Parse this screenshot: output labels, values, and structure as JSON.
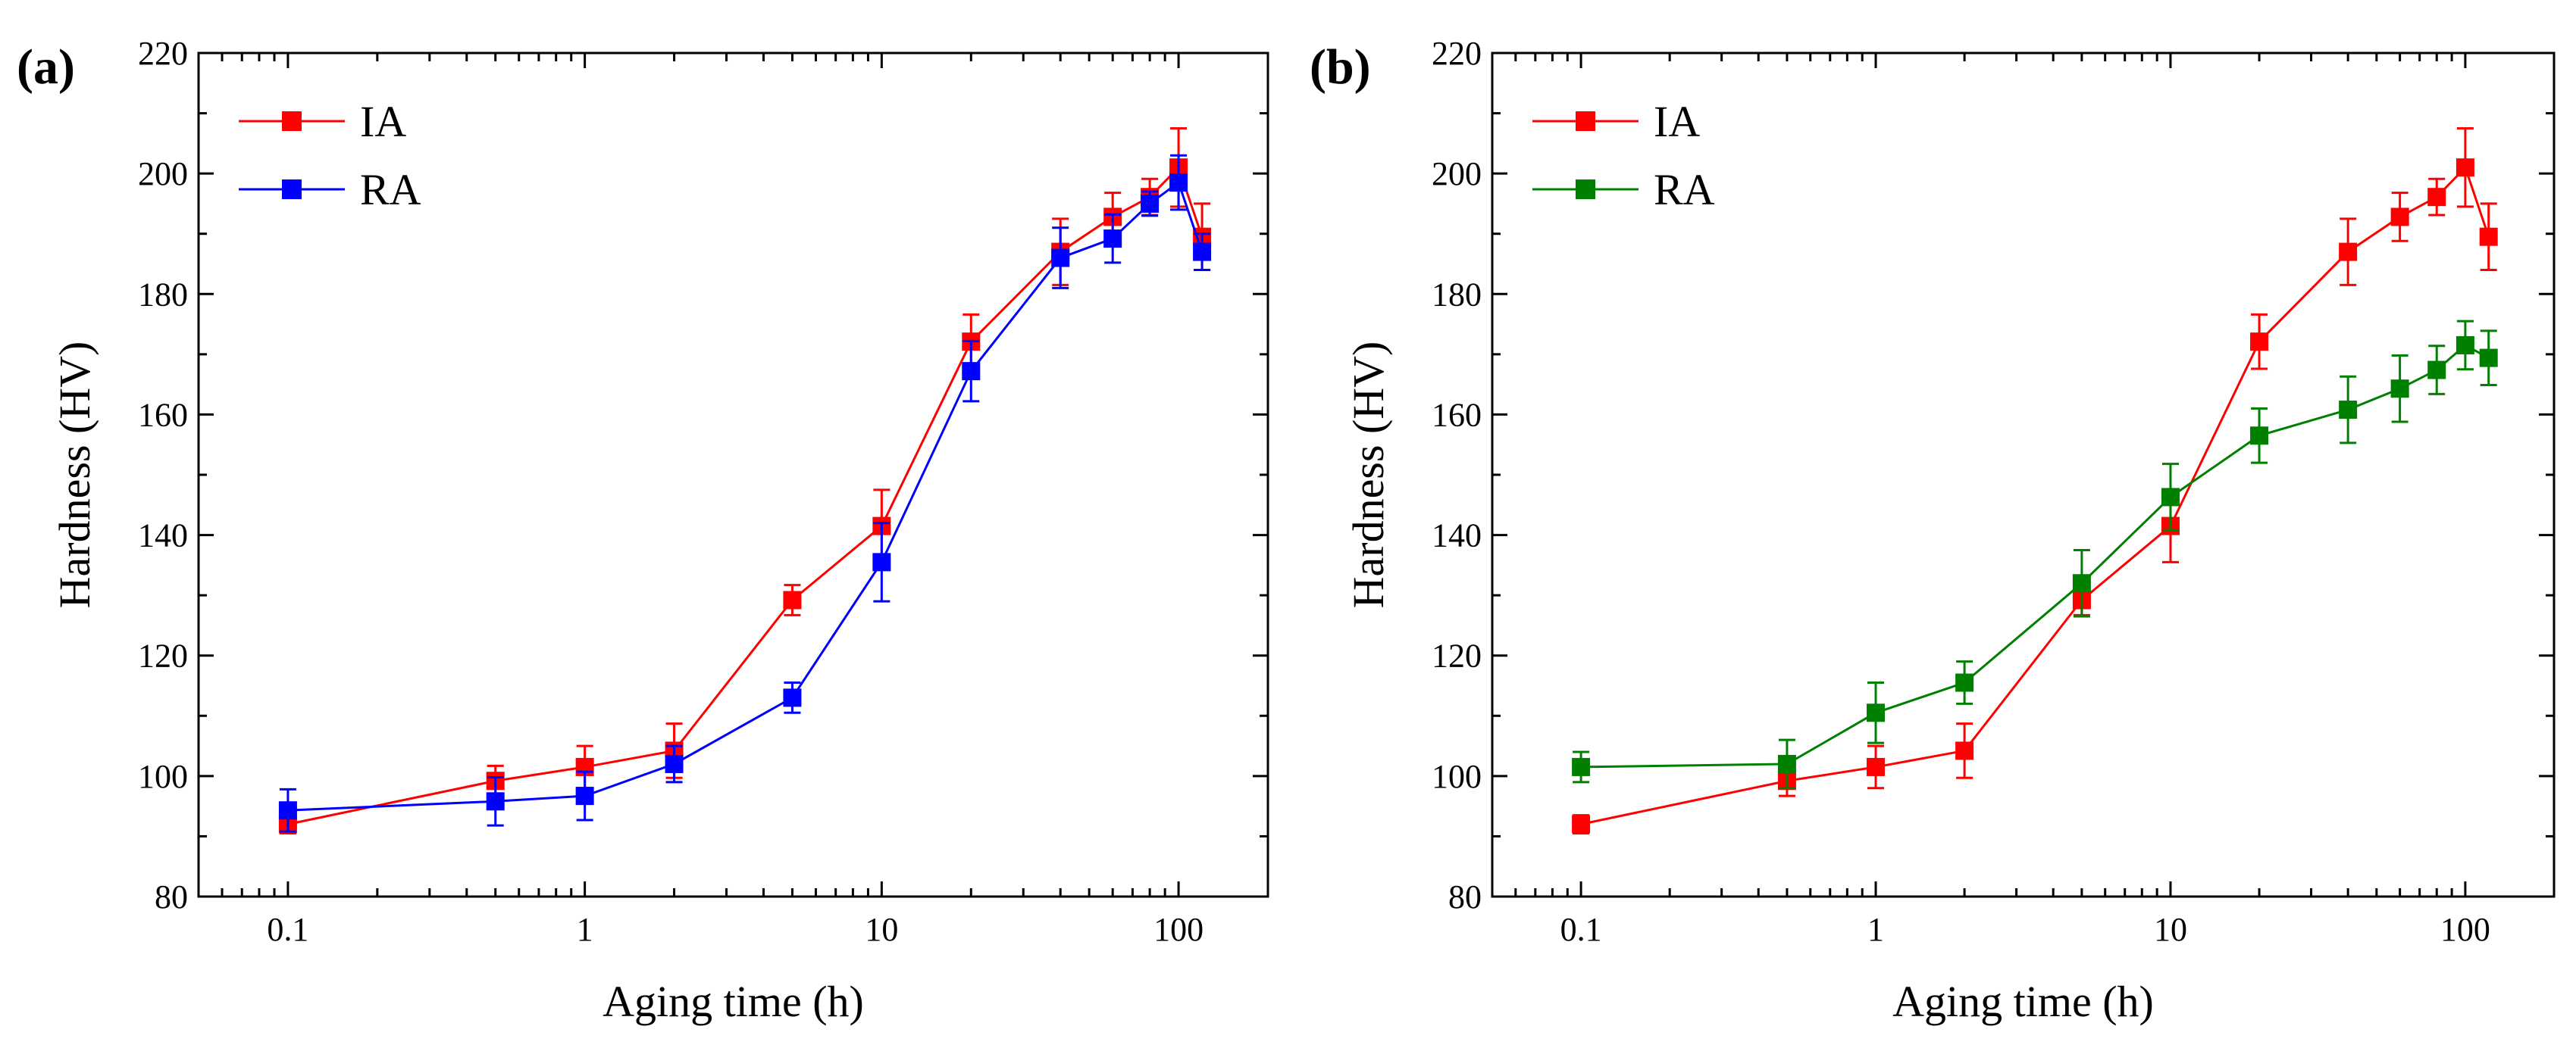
{
  "figure": {
    "panels": [
      {
        "label": "(a)"
      },
      {
        "label": "(b)"
      }
    ]
  },
  "chart_data": [
    {
      "type": "line",
      "panel_label": "(a)",
      "xlabel": "Aging time (h)",
      "ylabel": "Hardness (HV)",
      "xscale": "log",
      "xlim": [
        0.05,
        200
      ],
      "ylim": [
        80,
        220
      ],
      "xticks": [
        0.1,
        1,
        10,
        100
      ],
      "xtick_labels": [
        "0.1",
        "1",
        "10",
        "100"
      ],
      "yticks": [
        80,
        100,
        120,
        140,
        160,
        180,
        200,
        220
      ],
      "grid": false,
      "legend": "top-left",
      "x": [
        0.1,
        0.5,
        1,
        2,
        5,
        10,
        20,
        40,
        60,
        80,
        100,
        120
      ],
      "series": [
        {
          "name": "IA",
          "color": "#ff0000",
          "values": [
            92,
            99.2,
            101.5,
            104.2,
            129.2,
            141.5,
            172.1,
            187,
            192.8,
            196.1,
            201,
            189.5
          ],
          "errors": [
            1.5,
            2.5,
            3.5,
            4.5,
            2.5,
            6,
            4.5,
            5.5,
            4,
            3,
            6.5,
            5.5
          ]
        },
        {
          "name": "RA",
          "color": "#0000ff",
          "values": [
            94.3,
            95.8,
            96.7,
            102,
            113,
            135.5,
            167.2,
            186,
            189.2,
            195,
            198.5,
            187
          ],
          "errors": [
            3.5,
            4,
            4,
            3,
            2.5,
            6.5,
            5,
            5,
            4,
            2,
            4.5,
            3
          ]
        }
      ]
    },
    {
      "type": "line",
      "panel_label": "(b)",
      "xlabel": "Aging time (h)",
      "ylabel": "Hardness (HV)",
      "xscale": "log",
      "xlim": [
        0.05,
        200
      ],
      "ylim": [
        80,
        220
      ],
      "xticks": [
        0.1,
        1,
        10,
        100
      ],
      "xtick_labels": [
        "0.1",
        "1",
        "10",
        "100"
      ],
      "yticks": [
        80,
        100,
        120,
        140,
        160,
        180,
        200,
        220
      ],
      "grid": false,
      "legend": "top-left",
      "x": [
        0.1,
        0.5,
        1,
        2,
        5,
        10,
        20,
        40,
        60,
        80,
        100,
        120
      ],
      "series": [
        {
          "name": "IA",
          "color": "#ff0000",
          "values": [
            92,
            99.2,
            101.5,
            104.2,
            129.2,
            141.5,
            172.1,
            187,
            192.8,
            196.1,
            201,
            189.5
          ],
          "errors": [
            1.5,
            2.5,
            3.5,
            4.5,
            2.5,
            6,
            4.5,
            5.5,
            4,
            3,
            6.5,
            5.5
          ]
        },
        {
          "name": "RA",
          "color": "#008000",
          "values": [
            101.5,
            102,
            110.5,
            115.5,
            132,
            146.3,
            156.5,
            160.8,
            164.3,
            167.4,
            171.5,
            169.4
          ],
          "errors": [
            2.5,
            4,
            5,
            3.5,
            5.5,
            5.5,
            4.5,
            5.5,
            5.5,
            4,
            4,
            4.5
          ]
        }
      ]
    }
  ]
}
